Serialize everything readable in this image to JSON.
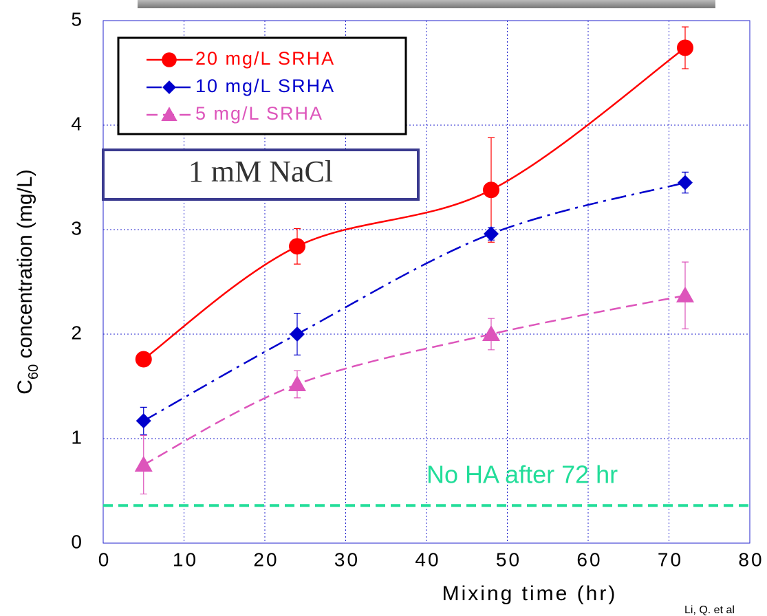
{
  "chart_data": {
    "type": "line",
    "x_label": "Mixing time (hr)",
    "y_label": [
      "C",
      "60",
      " concentration (mg/L)"
    ],
    "xlim": [
      0,
      80
    ],
    "xticks": [
      0,
      10,
      20,
      30,
      40,
      50,
      60,
      70,
      80
    ],
    "ylim": [
      0,
      5
    ],
    "yticks": [
      0,
      1,
      2,
      3,
      4,
      5
    ],
    "grid": true,
    "legend": "upper left",
    "x": [
      5,
      24,
      48,
      72
    ],
    "series": [
      {
        "name": "20 mg/L SRHA",
        "color": "#ff0000",
        "marker": "circle",
        "line_style": "solid",
        "values": [
          1.76,
          2.84,
          3.38,
          4.74
        ],
        "errors": [
          0.03,
          0.17,
          0.5,
          0.2
        ]
      },
      {
        "name": "10 mg/L SRHA",
        "color": "#0000cc",
        "marker": "diamond",
        "line_style": "dashdot",
        "values": [
          1.17,
          2.0,
          2.96,
          3.45
        ],
        "errors": [
          0.13,
          0.2,
          0.06,
          0.1
        ]
      },
      {
        "name": "5 mg/L SRHA",
        "color": "#dd55bb",
        "marker": "triangle",
        "line_style": "dashed",
        "values": [
          0.75,
          1.52,
          2.0,
          2.37
        ],
        "errors": [
          0.28,
          0.13,
          0.15,
          0.32
        ]
      }
    ],
    "reference_line": {
      "value": 0.36,
      "label": "No HA after 72 hr",
      "color": "#22dd99"
    },
    "annotation": "1 mM NaCl",
    "citation": "Li, Q. et al"
  }
}
